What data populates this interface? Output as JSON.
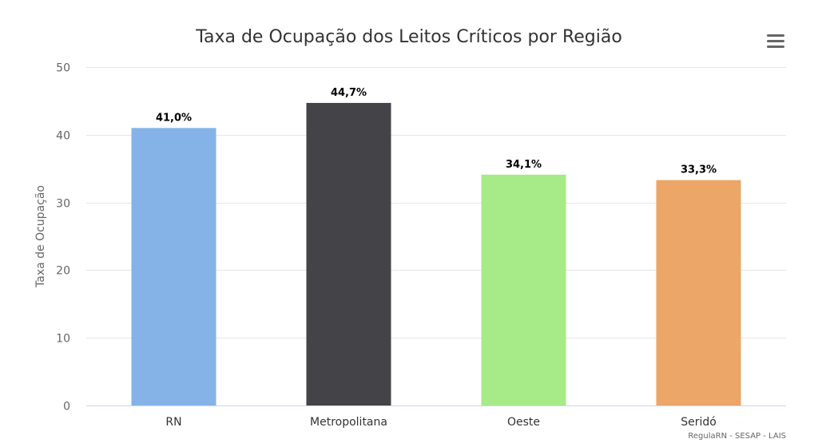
{
  "chart_data": {
    "type": "bar",
    "title": "Taxa de Ocupação dos Leitos Críticos por Região",
    "ylabel": "Taxa de Ocupação",
    "xlabel": "",
    "categories": [
      "RN",
      "Metropolitana",
      "Oeste",
      "Seridó"
    ],
    "values": [
      41.0,
      44.7,
      34.1,
      33.3
    ],
    "data_labels": [
      "41,0%",
      "44,7%",
      "34,1%",
      "33,3%"
    ],
    "colors": [
      "#85b3e8",
      "#434348",
      "#a6eb87",
      "#eca668"
    ],
    "ylim": [
      0,
      50
    ],
    "yticks": [
      0,
      10,
      20,
      30,
      40,
      50
    ],
    "ytick_labels": [
      "0",
      "10",
      "20",
      "30",
      "40",
      "50"
    ],
    "grid": true,
    "legend": "none"
  },
  "credits": "RegulaRN - SESAP - LAIS",
  "menu": {
    "icon": "hamburger-menu-icon"
  }
}
